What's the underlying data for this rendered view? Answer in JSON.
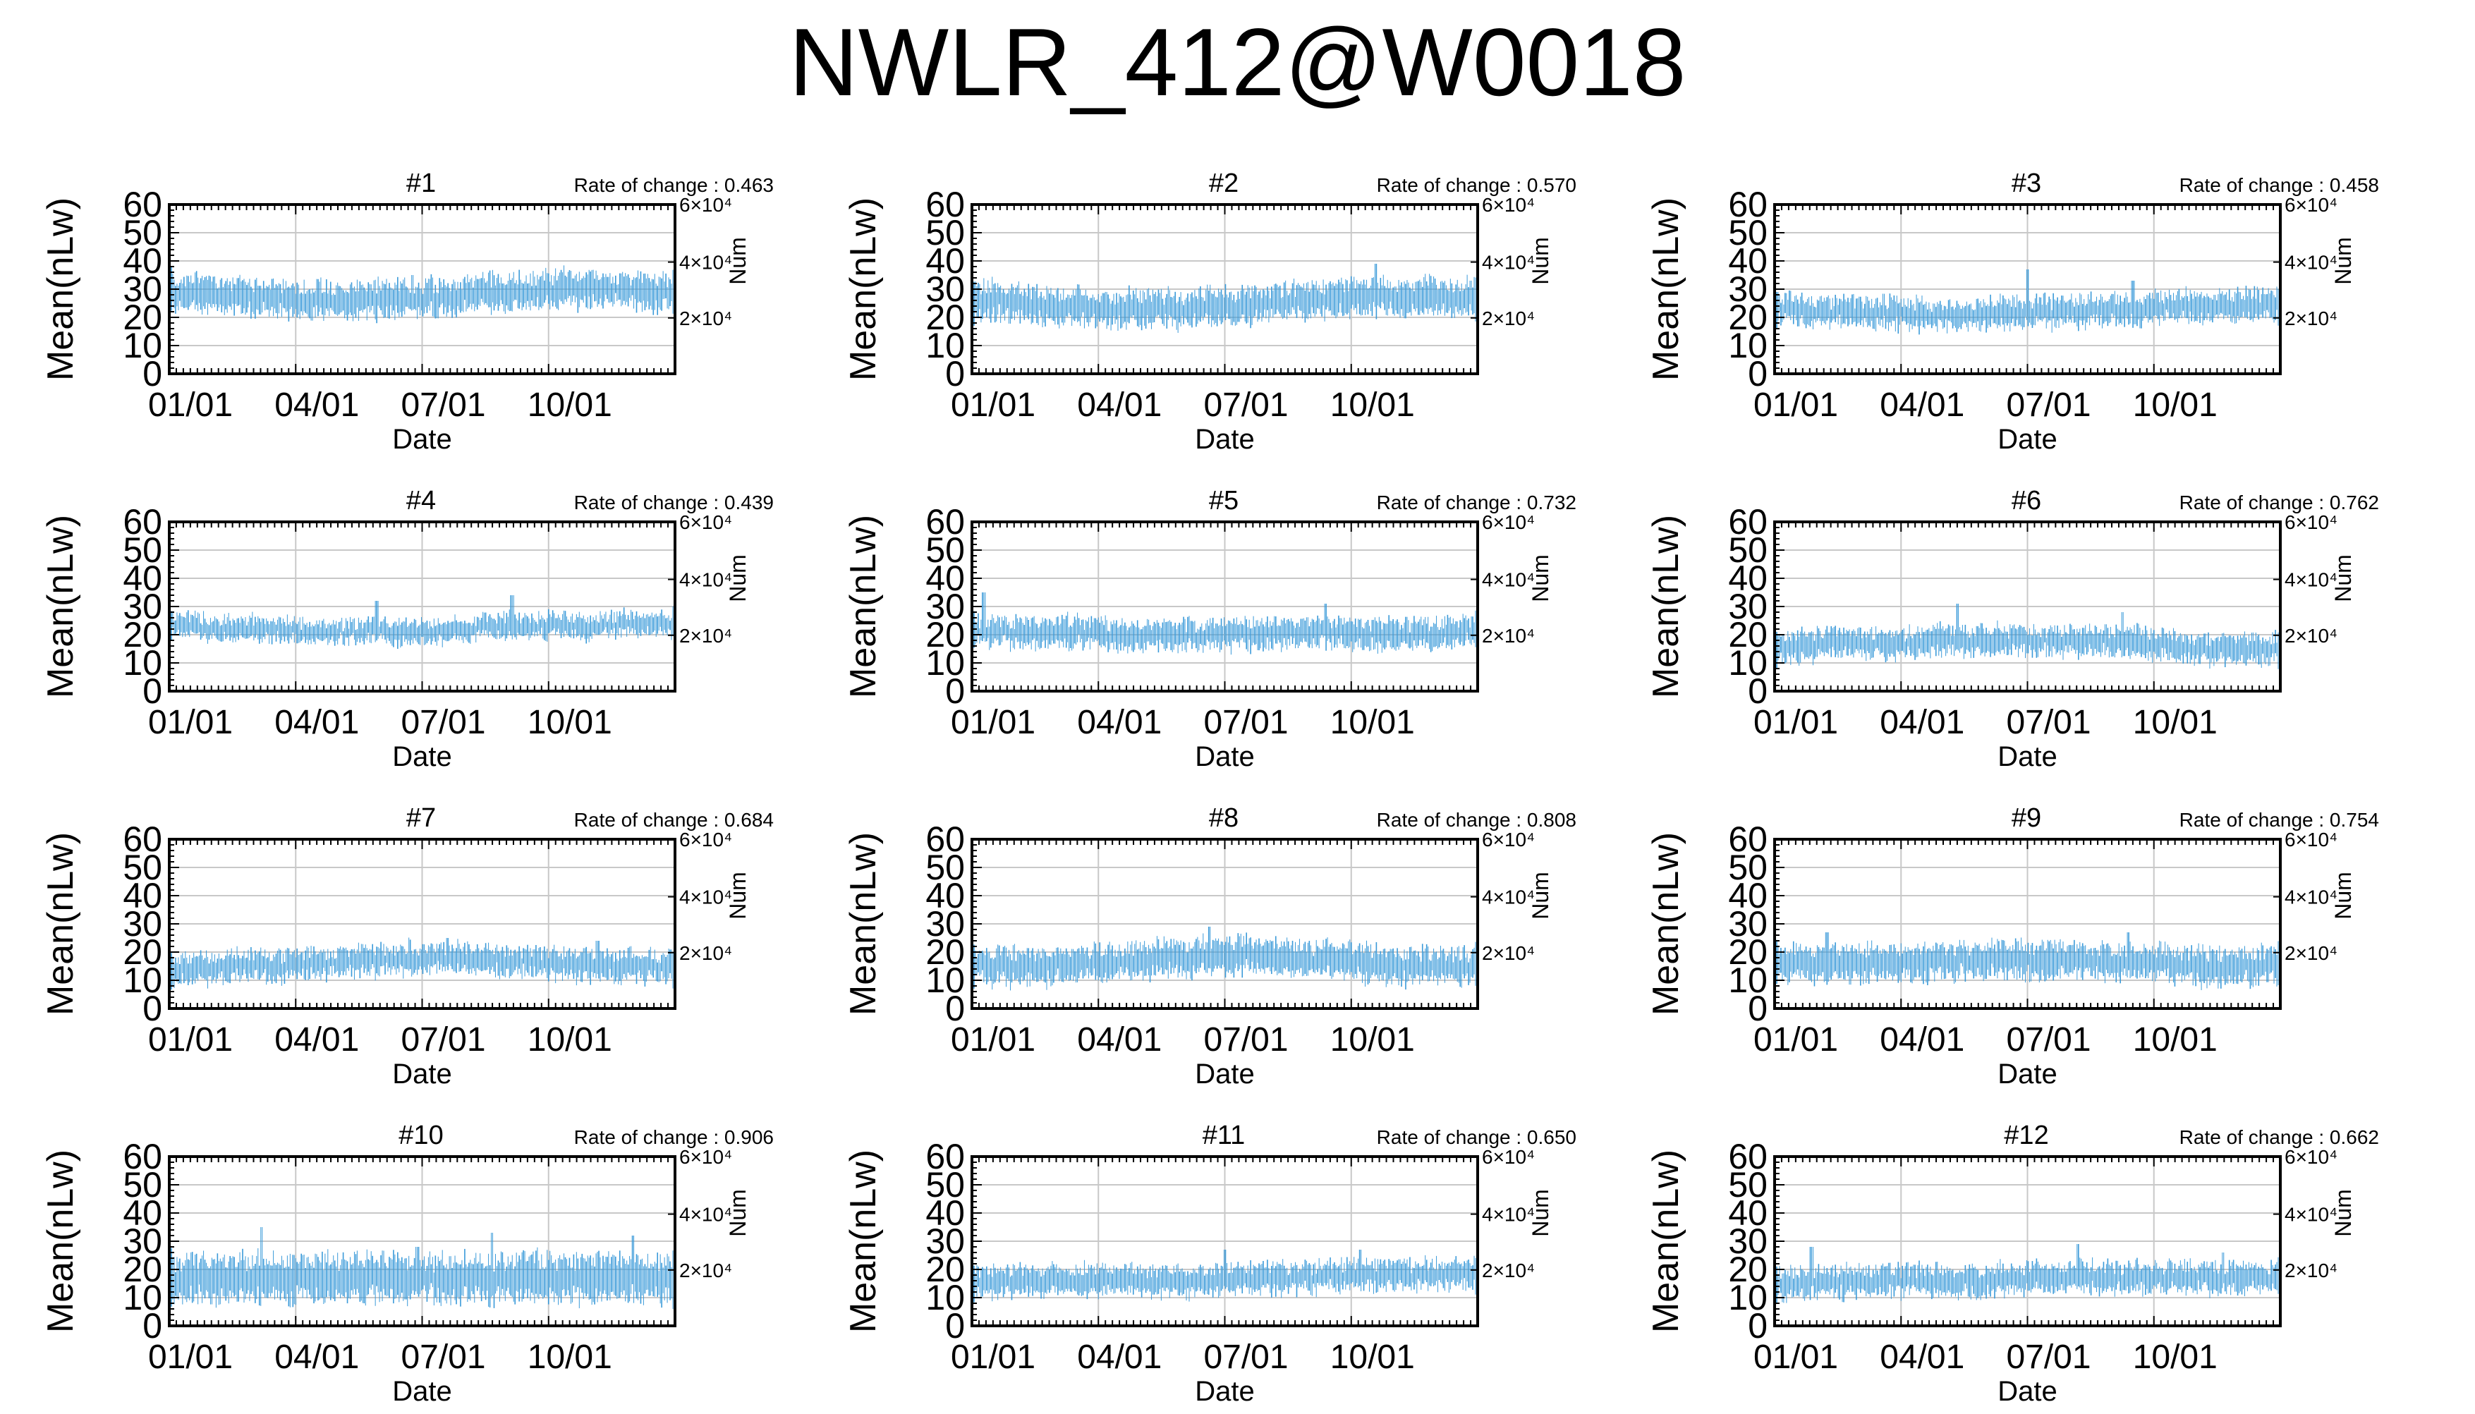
{
  "title": "NWLR_412@W0018",
  "colors": {
    "series": "#3a9ad9",
    "grid": "#c8c8c8",
    "axis": "#000000"
  },
  "chart_data": [
    {
      "type": "line",
      "title": "#1",
      "annotation": "Rate of change : 0.463",
      "xlabel": "Date",
      "ylabel": "Mean(nLw)",
      "y2label": "Num",
      "x_ticks": [
        "01/01",
        "04/01",
        "07/01",
        "10/01"
      ],
      "y_ticks": [
        0,
        10,
        20,
        30,
        40,
        50,
        60
      ],
      "y2_ticks": [
        "2×10⁴",
        "4×10⁴",
        "6×10⁴"
      ],
      "ylim": [
        0,
        60
      ],
      "grid": true,
      "series": [
        {
          "values": [
            29,
            29,
            28,
            27,
            27,
            26,
            26,
            26,
            26,
            27,
            27,
            28,
            29,
            29,
            29,
            30,
            30,
            30,
            29,
            29
          ],
          "spread": 6,
          "peaks": [
            {
              "at": 0.48,
              "value": 35
            }
          ]
        }
      ]
    },
    {
      "type": "line",
      "title": "#2",
      "annotation": "Rate of change : 0.570",
      "xlabel": "Date",
      "ylabel": "Mean(nLw)",
      "y2label": "Num",
      "x_ticks": [
        "01/01",
        "04/01",
        "07/01",
        "10/01"
      ],
      "y_ticks": [
        0,
        10,
        20,
        30,
        40,
        50,
        60
      ],
      "y2_ticks": [
        "2×10⁴",
        "4×10⁴",
        "6×10⁴"
      ],
      "ylim": [
        0,
        60
      ],
      "grid": true,
      "series": [
        {
          "values": [
            26,
            26,
            25,
            24,
            24,
            23,
            23,
            23,
            23,
            24,
            24,
            25,
            26,
            26,
            27,
            27,
            27,
            27,
            27,
            27
          ],
          "spread": 6,
          "peaks": [
            {
              "at": 0.8,
              "value": 39
            },
            {
              "at": 0.99,
              "value": 33
            }
          ]
        }
      ]
    },
    {
      "type": "line",
      "title": "#3",
      "annotation": "Rate of change : 0.458",
      "xlabel": "Date",
      "ylabel": "Mean(nLw)",
      "y2label": "Num",
      "x_ticks": [
        "01/01",
        "04/01",
        "07/01",
        "10/01"
      ],
      "y_ticks": [
        0,
        10,
        20,
        30,
        40,
        50,
        60
      ],
      "y2_ticks": [
        "2×10⁴",
        "4×10⁴",
        "6×10⁴"
      ],
      "ylim": [
        0,
        60
      ],
      "grid": true,
      "series": [
        {
          "values": [
            23,
            23,
            22,
            22,
            22,
            21,
            21,
            21,
            21,
            22,
            22,
            22,
            22,
            23,
            23,
            24,
            24,
            24,
            24,
            25
          ],
          "spread": 5,
          "peaks": [
            {
              "at": 0.5,
              "value": 37
            },
            {
              "at": 0.71,
              "value": 33
            }
          ]
        }
      ]
    },
    {
      "type": "line",
      "title": "#4",
      "annotation": "Rate of change : 0.439",
      "xlabel": "Date",
      "ylabel": "Mean(nLw)",
      "y2label": "Num",
      "x_ticks": [
        "01/01",
        "04/01",
        "07/01",
        "10/01"
      ],
      "y_ticks": [
        0,
        10,
        20,
        30,
        40,
        50,
        60
      ],
      "y2_ticks": [
        "2×10⁴",
        "4×10⁴",
        "6×10⁴"
      ],
      "ylim": [
        0,
        60
      ],
      "grid": true,
      "series": [
        {
          "values": [
            23,
            23,
            22,
            22,
            22,
            21,
            21,
            21,
            21,
            21,
            21,
            22,
            23,
            23,
            23,
            23,
            23,
            24,
            24,
            24
          ],
          "spread": 4,
          "peaks": [
            {
              "at": 0.68,
              "value": 34
            },
            {
              "at": 0.41,
              "value": 32
            }
          ]
        }
      ]
    },
    {
      "type": "line",
      "title": "#5",
      "annotation": "Rate of change : 0.732",
      "xlabel": "Date",
      "ylabel": "Mean(nLw)",
      "y2label": "Num",
      "x_ticks": [
        "01/01",
        "04/01",
        "07/01",
        "10/01"
      ],
      "y_ticks": [
        0,
        10,
        20,
        30,
        40,
        50,
        60
      ],
      "y2_ticks": [
        "2×10⁴",
        "4×10⁴",
        "6×10⁴"
      ],
      "ylim": [
        0,
        60
      ],
      "grid": true,
      "series": [
        {
          "values": [
            21,
            21,
            21,
            21,
            21,
            20,
            20,
            20,
            20,
            20,
            20,
            20,
            21,
            21,
            21,
            20,
            20,
            20,
            21,
            22
          ],
          "spread": 5,
          "peaks": [
            {
              "at": 0.02,
              "value": 35
            },
            {
              "at": 0.7,
              "value": 31
            }
          ]
        }
      ]
    },
    {
      "type": "line",
      "title": "#6",
      "annotation": "Rate of change : 0.762",
      "xlabel": "Date",
      "ylabel": "Mean(nLw)",
      "y2label": "Num",
      "x_ticks": [
        "01/01",
        "04/01",
        "07/01",
        "10/01"
      ],
      "y_ticks": [
        0,
        10,
        20,
        30,
        40,
        50,
        60
      ],
      "y2_ticks": [
        "2×10⁴",
        "4×10⁴",
        "6×10⁴"
      ],
      "ylim": [
        0,
        60
      ],
      "grid": true,
      "series": [
        {
          "values": [
            16,
            16,
            17,
            17,
            17,
            17,
            18,
            18,
            18,
            18,
            18,
            18,
            18,
            18,
            17,
            16,
            15,
            15,
            15,
            15
          ],
          "spread": 5,
          "peaks": [
            {
              "at": 0.36,
              "value": 31
            },
            {
              "at": 0.69,
              "value": 28
            }
          ]
        }
      ]
    },
    {
      "type": "line",
      "title": "#7",
      "annotation": "Rate of change : 0.684",
      "xlabel": "Date",
      "ylabel": "Mean(nLw)",
      "y2label": "Num",
      "x_ticks": [
        "01/01",
        "04/01",
        "07/01",
        "10/01"
      ],
      "y_ticks": [
        0,
        10,
        20,
        30,
        40,
        50,
        60
      ],
      "y2_ticks": [
        "2×10⁴",
        "4×10⁴",
        "6×10⁴"
      ],
      "ylim": [
        0,
        60
      ],
      "grid": true,
      "series": [
        {
          "values": [
            14,
            14,
            15,
            15,
            15,
            16,
            16,
            17,
            17,
            18,
            18,
            18,
            17,
            17,
            16,
            16,
            15,
            15,
            15,
            15
          ],
          "spread": 5,
          "peaks": [
            {
              "at": 0.55,
              "value": 25
            },
            {
              "at": 0.85,
              "value": 24
            }
          ]
        }
      ]
    },
    {
      "type": "line",
      "title": "#8",
      "annotation": "Rate of change : 0.808",
      "xlabel": "Date",
      "ylabel": "Mean(nLw)",
      "y2label": "Num",
      "x_ticks": [
        "01/01",
        "04/01",
        "07/01",
        "10/01"
      ],
      "y_ticks": [
        0,
        10,
        20,
        30,
        40,
        50,
        60
      ],
      "y2_ticks": [
        "2×10⁴",
        "4×10⁴",
        "6×10⁴"
      ],
      "ylim": [
        0,
        60
      ],
      "grid": true,
      "series": [
        {
          "values": [
            15,
            15,
            15,
            15,
            16,
            16,
            17,
            18,
            18,
            19,
            19,
            18,
            18,
            17,
            17,
            16,
            15,
            15,
            15,
            15
          ],
          "spread": 6,
          "peaks": [
            {
              "at": 0.47,
              "value": 29
            }
          ]
        }
      ]
    },
    {
      "type": "line",
      "title": "#9",
      "annotation": "Rate of change : 0.754",
      "xlabel": "Date",
      "ylabel": "Mean(nLw)",
      "y2label": "Num",
      "x_ticks": [
        "01/01",
        "04/01",
        "07/01",
        "10/01"
      ],
      "y_ticks": [
        0,
        10,
        20,
        30,
        40,
        50,
        60
      ],
      "y2_ticks": [
        "2×10⁴",
        "4×10⁴",
        "6×10⁴"
      ],
      "ylim": [
        0,
        60
      ],
      "grid": true,
      "series": [
        {
          "values": [
            16,
            16,
            16,
            16,
            16,
            16,
            17,
            17,
            17,
            17,
            17,
            17,
            17,
            16,
            16,
            16,
            15,
            15,
            15,
            16
          ],
          "spread": 6,
          "peaks": [
            {
              "at": 0.1,
              "value": 27
            },
            {
              "at": 0.7,
              "value": 27
            }
          ]
        }
      ]
    },
    {
      "type": "line",
      "title": "#10",
      "annotation": "Rate of change : 0.906",
      "xlabel": "Date",
      "ylabel": "Mean(nLw)",
      "y2label": "Num",
      "x_ticks": [
        "01/01",
        "04/01",
        "07/01",
        "10/01"
      ],
      "y_ticks": [
        0,
        10,
        20,
        30,
        40,
        50,
        60
      ],
      "y2_ticks": [
        "2×10⁴",
        "4×10⁴",
        "6×10⁴"
      ],
      "ylim": [
        0,
        60
      ],
      "grid": true,
      "series": [
        {
          "values": [
            16,
            17,
            17,
            17,
            17,
            17,
            17,
            17,
            17,
            17,
            17,
            17,
            17,
            17,
            17,
            17,
            17,
            17,
            17,
            17
          ],
          "spread": 8,
          "peaks": [
            {
              "at": 0.18,
              "value": 35
            },
            {
              "at": 0.64,
              "value": 33
            },
            {
              "at": 0.92,
              "value": 32
            },
            {
              "at": 0.49,
              "value": 28
            }
          ]
        }
      ]
    },
    {
      "type": "line",
      "title": "#11",
      "annotation": "Rate of change : 0.650",
      "xlabel": "Date",
      "ylabel": "Mean(nLw)",
      "y2label": "Num",
      "x_ticks": [
        "01/01",
        "04/01",
        "07/01",
        "10/01"
      ],
      "y_ticks": [
        0,
        10,
        20,
        30,
        40,
        50,
        60
      ],
      "y2_ticks": [
        "2×10⁴",
        "4×10⁴",
        "6×10⁴"
      ],
      "ylim": [
        0,
        60
      ],
      "grid": true,
      "series": [
        {
          "values": [
            16,
            16,
            16,
            16,
            16,
            16,
            16,
            16,
            16,
            16,
            17,
            17,
            17,
            17,
            18,
            18,
            18,
            18,
            18,
            19
          ],
          "spread": 5,
          "peaks": [
            {
              "at": 0.5,
              "value": 27
            },
            {
              "at": 0.77,
              "value": 27
            }
          ]
        }
      ]
    },
    {
      "type": "line",
      "title": "#12",
      "annotation": "Rate of change : 0.662",
      "xlabel": "Date",
      "ylabel": "Mean(nLw)",
      "y2label": "Num",
      "x_ticks": [
        "01/01",
        "04/01",
        "07/01",
        "10/01"
      ],
      "y_ticks": [
        0,
        10,
        20,
        30,
        40,
        50,
        60
      ],
      "y2_ticks": [
        "2×10⁴",
        "4×10⁴",
        "6×10⁴"
      ],
      "ylim": [
        0,
        60
      ],
      "grid": true,
      "series": [
        {
          "values": [
            15,
            15,
            15,
            16,
            16,
            16,
            16,
            16,
            16,
            17,
            17,
            17,
            17,
            17,
            17,
            17,
            17,
            17,
            17,
            17
          ],
          "spread": 5,
          "peaks": [
            {
              "at": 0.07,
              "value": 28
            },
            {
              "at": 0.6,
              "value": 29
            },
            {
              "at": 0.89,
              "value": 26
            }
          ]
        }
      ]
    }
  ]
}
